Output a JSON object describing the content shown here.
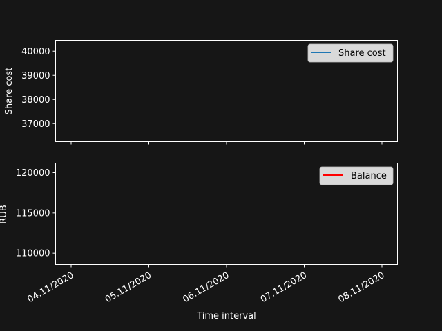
{
  "chart_data": [
    {
      "type": "line",
      "ylabel": "Share cost",
      "xlabel": "",
      "ylim": [
        36250,
        40450
      ],
      "yticks": [
        37000,
        38000,
        39000,
        40000
      ],
      "x_categories": [
        "04.11/2020",
        "05.11/2020",
        "06.11/2020",
        "07.11/2020",
        "08.11/2020"
      ],
      "show_x_ticklabels": false,
      "grid": false,
      "legend_position": "top-right",
      "series": [
        {
          "name": "Share cost",
          "color": "#1f77b4",
          "values": []
        }
      ]
    },
    {
      "type": "line",
      "ylabel": "RUB",
      "xlabel": "Time interval",
      "ylim": [
        108600,
        121200
      ],
      "yticks": [
        110000,
        115000,
        120000
      ],
      "x_categories": [
        "04.11/2020",
        "05.11/2020",
        "06.11/2020",
        "07.11/2020",
        "08.11/2020"
      ],
      "show_x_ticklabels": true,
      "grid": false,
      "legend_position": "top-right",
      "series": [
        {
          "name": "Balance",
          "color": "#ff0000",
          "values": []
        }
      ]
    }
  ],
  "colors": {
    "background": "#161616",
    "axes_edge": "#ffffff",
    "text": "#ffffff",
    "legend_fill": "#d9d9d9",
    "legend_text": "#000000"
  }
}
